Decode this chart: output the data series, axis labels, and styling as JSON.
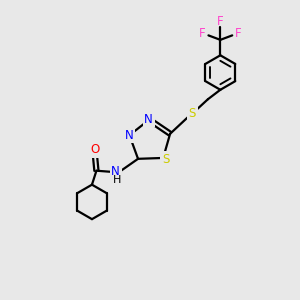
{
  "background_color": "#e8e8e8",
  "bond_color": "#000000",
  "N_color": "#0000ff",
  "O_color": "#ff0000",
  "S_color": "#cccc00",
  "F_color": "#ff44cc",
  "line_width": 1.6,
  "figsize": [
    3.0,
    3.0
  ],
  "dpi": 100,
  "ring_S_label": "S",
  "thio_S_label": "S",
  "N_label": "N",
  "O_label": "O",
  "F_label": "F",
  "H_label": "H"
}
